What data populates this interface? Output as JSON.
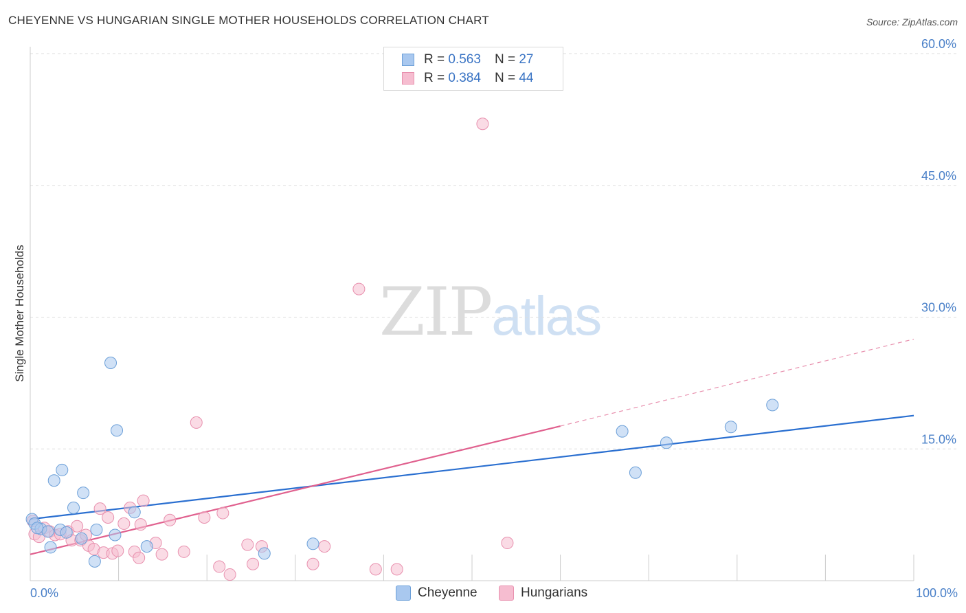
{
  "header": {
    "title": "CHEYENNE VS HUNGARIAN SINGLE MOTHER HOUSEHOLDS CORRELATION CHART",
    "source": "Source: ZipAtlas.com"
  },
  "watermark": {
    "zip": "ZIP",
    "atlas": "atlas"
  },
  "colors": {
    "cheyenne_fill": "#a9c8ef",
    "cheyenne_stroke": "#6b9fd8",
    "cheyenne_line": "#2a6fd0",
    "hungarian_fill": "#f6bdd0",
    "hungarian_stroke": "#e890ae",
    "hungarian_line": "#e0608e",
    "grid": "#dddddd",
    "tick_text": "#4a80c8"
  },
  "legend": {
    "rows": [
      {
        "r_label": "R =",
        "r_value": "0.563",
        "n_label": "N =",
        "n_value": "27",
        "series": "cheyenne"
      },
      {
        "r_label": "R =",
        "r_value": "0.384",
        "n_label": "N =",
        "n_value": "44",
        "series": "hungarian"
      }
    ]
  },
  "bottom_legend": {
    "cheyenne": "Cheyenne",
    "hungarians": "Hungarians"
  },
  "chart_data": {
    "type": "scatter",
    "title": "CHEYENNE VS HUNGARIAN SINGLE MOTHER HOUSEHOLDS CORRELATION CHART",
    "xlabel": "",
    "ylabel": "Single Mother Households",
    "xlim": [
      0,
      100
    ],
    "ylim": [
      0,
      60
    ],
    "x_tick_labels": [
      "0.0%",
      "100.0%"
    ],
    "y_ticks": [
      15,
      30,
      45,
      60
    ],
    "y_tick_labels": [
      "15.0%",
      "30.0%",
      "45.0%",
      "60.0%"
    ],
    "grid": true,
    "series": [
      {
        "name": "Cheyenne",
        "r": 0.563,
        "n": 27,
        "points": [
          [
            0.2,
            7.0
          ],
          [
            0.5,
            6.5
          ],
          [
            1.2,
            5.9
          ],
          [
            2.0,
            5.6
          ],
          [
            2.3,
            3.8
          ],
          [
            2.7,
            11.4
          ],
          [
            3.4,
            5.8
          ],
          [
            3.6,
            12.6
          ],
          [
            4.1,
            5.5
          ],
          [
            4.9,
            8.3
          ],
          [
            5.8,
            4.8
          ],
          [
            6.0,
            10.0
          ],
          [
            7.3,
            2.2
          ],
          [
            7.5,
            5.8
          ],
          [
            9.1,
            24.8
          ],
          [
            9.6,
            5.2
          ],
          [
            9.8,
            17.1
          ],
          [
            11.8,
            7.8
          ],
          [
            13.2,
            3.9
          ],
          [
            26.5,
            3.1
          ],
          [
            32.0,
            4.2
          ],
          [
            67.0,
            17.0
          ],
          [
            68.5,
            12.3
          ],
          [
            72.0,
            15.7
          ],
          [
            79.3,
            17.5
          ],
          [
            84.0,
            20.0
          ],
          [
            0.8,
            6.0
          ]
        ],
        "trend": {
          "x": [
            0,
            100
          ],
          "y": [
            7.0,
            18.8
          ],
          "style": "solid"
        }
      },
      {
        "name": "Hungarians",
        "r": 0.384,
        "n": 44,
        "points": [
          [
            0.3,
            6.8
          ],
          [
            0.5,
            5.3
          ],
          [
            1.0,
            5.0
          ],
          [
            1.6,
            6.0
          ],
          [
            2.2,
            5.6
          ],
          [
            2.8,
            5.2
          ],
          [
            3.4,
            5.3
          ],
          [
            4.3,
            5.6
          ],
          [
            4.7,
            4.6
          ],
          [
            5.3,
            6.2
          ],
          [
            5.7,
            4.6
          ],
          [
            6.3,
            5.2
          ],
          [
            6.6,
            4.0
          ],
          [
            7.2,
            3.6
          ],
          [
            7.9,
            8.2
          ],
          [
            8.3,
            3.2
          ],
          [
            8.8,
            7.2
          ],
          [
            9.3,
            3.1
          ],
          [
            9.9,
            3.4
          ],
          [
            10.6,
            6.5
          ],
          [
            11.3,
            8.3
          ],
          [
            11.8,
            3.3
          ],
          [
            12.3,
            2.6
          ],
          [
            12.5,
            6.4
          ],
          [
            12.8,
            9.1
          ],
          [
            14.2,
            4.3
          ],
          [
            14.9,
            3.0
          ],
          [
            15.8,
            6.9
          ],
          [
            17.4,
            3.3
          ],
          [
            18.8,
            18.0
          ],
          [
            19.7,
            7.2
          ],
          [
            21.4,
            1.6
          ],
          [
            21.8,
            7.7
          ],
          [
            22.6,
            0.7
          ],
          [
            24.6,
            4.1
          ],
          [
            25.2,
            1.9
          ],
          [
            26.2,
            3.9
          ],
          [
            32.0,
            1.9
          ],
          [
            33.3,
            3.9
          ],
          [
            37.2,
            33.2
          ],
          [
            39.1,
            1.3
          ],
          [
            41.5,
            1.3
          ],
          [
            51.2,
            52.0
          ],
          [
            54.0,
            4.3
          ]
        ],
        "trend": {
          "x": [
            0,
            60
          ],
          "y": [
            3.0,
            17.6
          ],
          "style": "solid"
        },
        "trend_extension": {
          "x": [
            60,
            100
          ],
          "y": [
            17.6,
            27.5
          ],
          "style": "dashed"
        }
      }
    ]
  }
}
